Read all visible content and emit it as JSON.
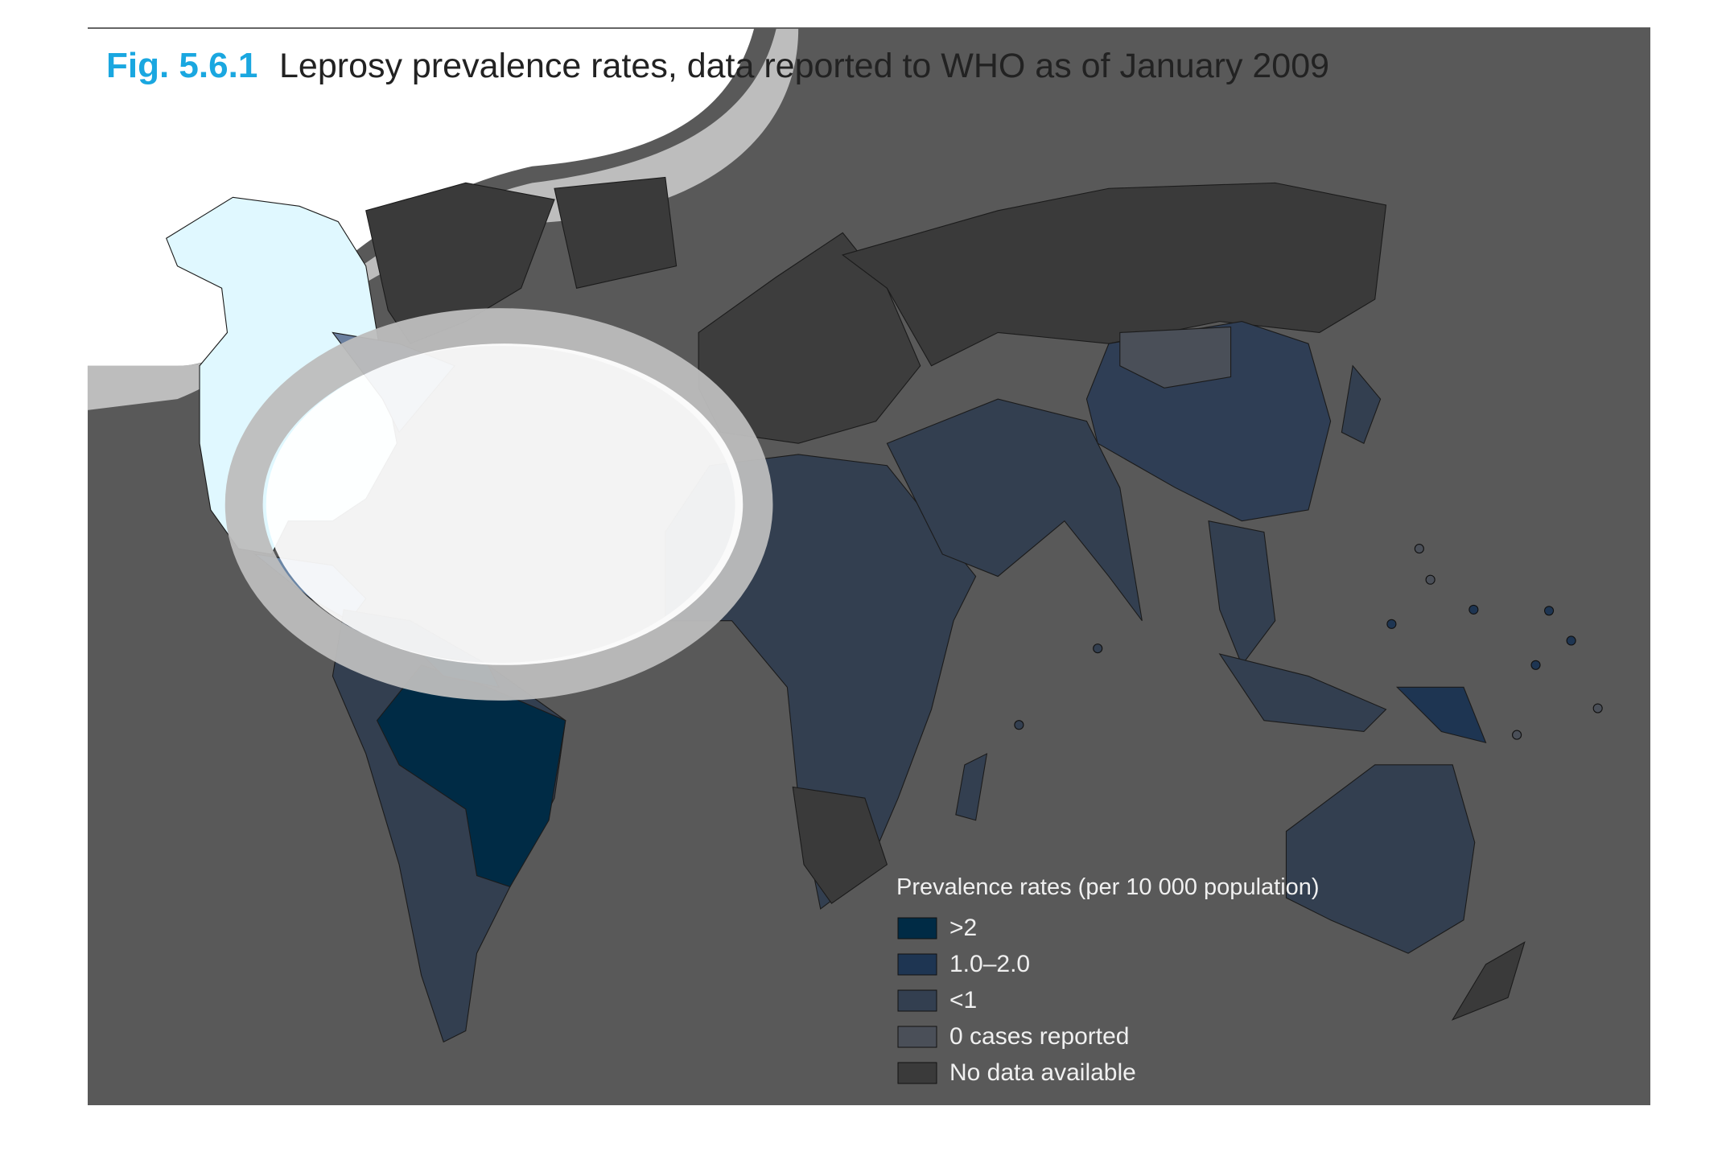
{
  "header": {
    "fig_label": "Fig. 5.6.1",
    "title": "Leprosy prevalence rates, data reported to WHO as of January 2009"
  },
  "legend": {
    "title": "Prevalence rates (per 10 000 population)",
    "items": [
      {
        "label": ">2",
        "color": "#002b45"
      },
      {
        "label": "1.0–2.0",
        "color": "#1e3552"
      },
      {
        "label": "<1",
        "color": "#333f50"
      },
      {
        "label": "0 cases reported",
        "color": "#4a4f58"
      },
      {
        "label": "No data available",
        "color": "#3a3a3a"
      }
    ]
  }
}
